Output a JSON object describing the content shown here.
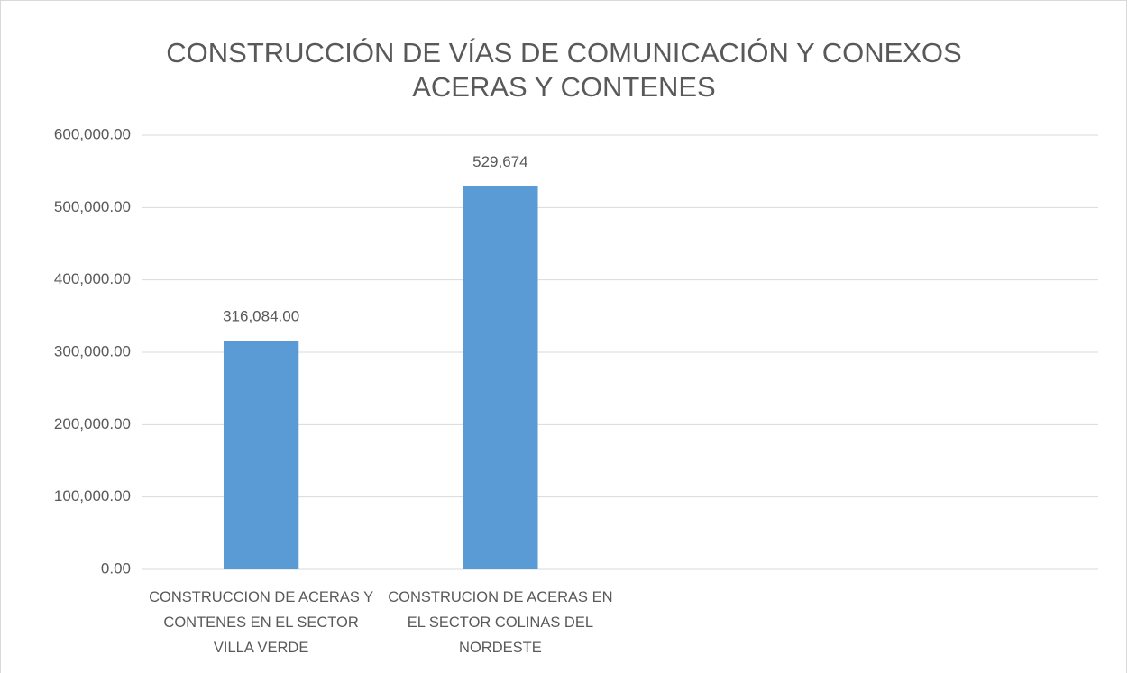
{
  "chart_data": {
    "type": "bar",
    "title": "CONSTRUCCIÓN DE VÍAS DE COMUNICACIÓN Y CONEXOS\nACERAS Y CONTENES",
    "categories": [
      "CONSTRUCCION DE ACERAS Y CONTENES EN EL SECTOR VILLA VERDE",
      "CONSTRUCION DE ACERAS EN EL SECTOR COLINAS DEL NORDESTE",
      null,
      null
    ],
    "values": [
      316084,
      529674,
      null,
      null
    ],
    "value_labels": [
      "316,084.00",
      "529,674",
      null,
      null
    ],
    "color": "#5b9bd5",
    "ylim": [
      0,
      600000
    ],
    "yticks": [
      {
        "value": 0,
        "label": "0.00"
      },
      {
        "value": 100000,
        "label": "100,000.00"
      },
      {
        "value": 200000,
        "label": "200,000.00"
      },
      {
        "value": 300000,
        "label": "300,000.00"
      },
      {
        "value": 400000,
        "label": "400,000.00"
      },
      {
        "value": 500000,
        "label": "500,000.00"
      },
      {
        "value": 600000,
        "label": "600,000.00"
      }
    ],
    "grid": true
  }
}
